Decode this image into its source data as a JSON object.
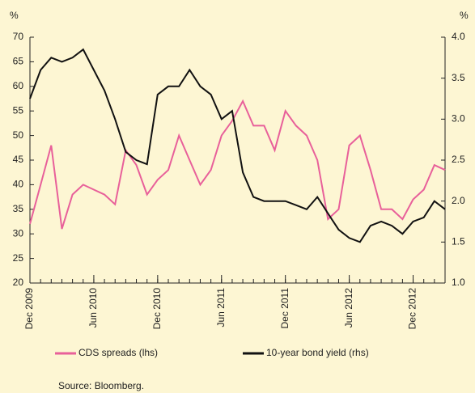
{
  "chart_data": {
    "type": "line",
    "y_unit": "%",
    "y2_unit": "%",
    "x": [
      "2009-12",
      "2010-01",
      "2010-02",
      "2010-03",
      "2010-04",
      "2010-05",
      "2010-06",
      "2010-07",
      "2010-08",
      "2010-09",
      "2010-10",
      "2010-11",
      "2010-12",
      "2011-01",
      "2011-02",
      "2011-03",
      "2011-04",
      "2011-05",
      "2011-06",
      "2011-07",
      "2011-08",
      "2011-09",
      "2011-10",
      "2011-11",
      "2011-12",
      "2012-01",
      "2012-02",
      "2012-03",
      "2012-04",
      "2012-05",
      "2012-06",
      "2012-07",
      "2012-08",
      "2012-09",
      "2012-10",
      "2012-11",
      "2012-12",
      "2013-01",
      "2013-02",
      "2013-03"
    ],
    "series": [
      {
        "name": "CDS spreads (lhs)",
        "color": "#e8609a",
        "values": [
          32,
          40,
          48,
          31,
          38,
          40,
          39,
          38,
          36,
          47,
          44,
          38,
          41,
          43,
          50,
          45,
          40,
          43,
          50,
          53,
          57,
          52,
          52,
          47,
          55,
          52,
          50,
          45,
          33,
          35,
          48,
          50,
          43,
          35,
          35,
          33,
          37,
          39,
          44,
          43
        ]
      },
      {
        "name": "10-year bond yield (rhs)",
        "color": "#111111",
        "axis": "y2",
        "values": [
          3.25,
          3.6,
          3.75,
          3.7,
          3.75,
          3.85,
          3.6,
          3.35,
          3.0,
          2.6,
          2.5,
          2.45,
          3.3,
          3.4,
          3.4,
          3.6,
          3.4,
          3.3,
          3.0,
          3.1,
          2.35,
          2.05,
          2.0,
          2.0,
          2.0,
          1.95,
          1.9,
          2.05,
          1.85,
          1.65,
          1.55,
          1.5,
          1.7,
          1.75,
          1.7,
          1.6,
          1.75,
          1.8,
          2.0,
          1.9
        ]
      }
    ],
    "xlim": [
      "2009-12",
      "2013-03"
    ],
    "xticks": [
      {
        "value": "2009-12",
        "label": "Dec 2009"
      },
      {
        "value": "2010-06",
        "label": "Jun 2010"
      },
      {
        "value": "2010-12",
        "label": "Dec 2010"
      },
      {
        "value": "2011-06",
        "label": "Jun 2011"
      },
      {
        "value": "2011-12",
        "label": "Dec 2011"
      },
      {
        "value": "2012-06",
        "label": "Jun 2012"
      },
      {
        "value": "2012-12",
        "label": "Dec 2012"
      }
    ],
    "ylim": [
      20,
      70
    ],
    "yticks": [
      20,
      25,
      30,
      35,
      40,
      45,
      50,
      55,
      60,
      65,
      70
    ],
    "y2lim": [
      1.0,
      4.0
    ],
    "y2ticks": [
      {
        "value": 1.0,
        "label": "1.0"
      },
      {
        "value": 1.5,
        "label": "1.5"
      },
      {
        "value": 2.0,
        "label": "2.0"
      },
      {
        "value": 2.5,
        "label": "2.5"
      },
      {
        "value": 3.0,
        "label": "3.0"
      },
      {
        "value": 3.5,
        "label": "3.5"
      },
      {
        "value": 4.0,
        "label": "4.0"
      }
    ],
    "source": "Source: Bloomberg."
  }
}
